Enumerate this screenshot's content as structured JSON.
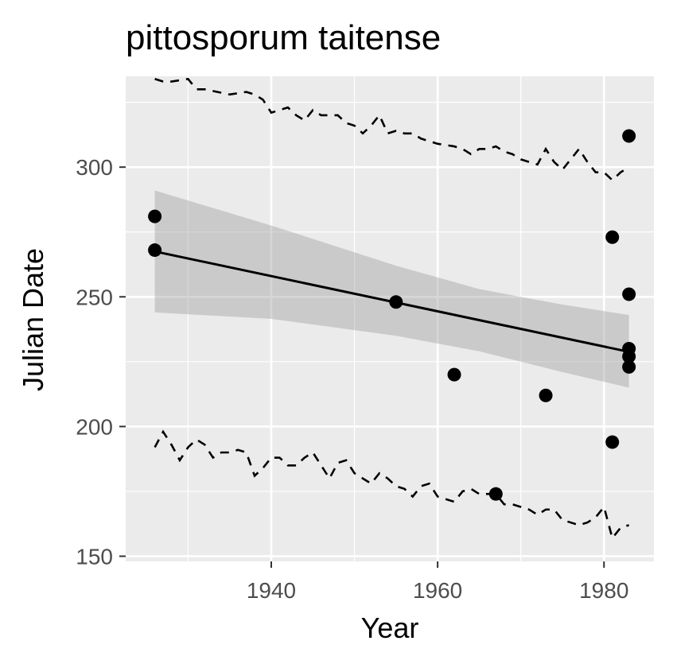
{
  "chart_data": {
    "type": "scatter",
    "title": "pittosporum taitense",
    "xlabel": "Year",
    "ylabel": "Julian Date",
    "xlim": [
      1922.5,
      1986
    ],
    "ylim": [
      148,
      335
    ],
    "x_ticks": [
      1940,
      1960,
      1980
    ],
    "x_tick_labels": [
      "1940",
      "1960",
      "1980"
    ],
    "x_minor_ticks": [
      1930,
      1950,
      1970
    ],
    "y_ticks": [
      150,
      200,
      250,
      300
    ],
    "y_tick_labels": [
      "150",
      "200",
      "250",
      "300"
    ],
    "y_minor_ticks": [
      175,
      225,
      275,
      325
    ],
    "grid": true,
    "background": "#ebebeb",
    "points": {
      "x": [
        1926,
        1926,
        1955,
        1962,
        1967,
        1973,
        1981,
        1981,
        1983,
        1983,
        1983,
        1983,
        1983
      ],
      "y": [
        281,
        268,
        248,
        220,
        174,
        212,
        273,
        194,
        312,
        251,
        230,
        227,
        223
      ]
    },
    "trend_line": {
      "x": [
        1926,
        1983
      ],
      "y": [
        267.5,
        228.8
      ]
    },
    "confidence_band": {
      "x": [
        1926,
        1940,
        1955,
        1965,
        1975,
        1983
      ],
      "upper": [
        291,
        277.5,
        262,
        253,
        247,
        243
      ],
      "lower": [
        244,
        241.5,
        235,
        229,
        221,
        215
      ]
    },
    "upper_dashed": {
      "x": [
        1926,
        1927,
        1928,
        1930,
        1931,
        1932,
        1935,
        1937,
        1938,
        1939,
        1940,
        1941,
        1942,
        1943,
        1944,
        1945,
        1946,
        1947,
        1948,
        1949,
        1950,
        1951,
        1952,
        1953,
        1954,
        1955,
        1956,
        1957,
        1958,
        1959,
        1960,
        1962,
        1963,
        1964,
        1965,
        1966,
        1967,
        1968,
        1969,
        1970,
        1971,
        1972,
        1973,
        1974,
        1975,
        1976,
        1977,
        1978,
        1979,
        1980,
        1981,
        1982,
        1983
      ],
      "y": [
        334,
        333,
        333,
        334,
        330,
        330,
        328,
        329,
        328,
        326,
        321,
        322,
        323,
        320,
        318,
        322,
        320,
        320,
        320,
        317,
        316,
        313,
        316,
        320,
        313,
        314,
        313,
        313,
        311,
        310,
        309,
        308,
        307,
        305,
        307,
        307,
        308,
        306,
        305,
        303,
        302,
        301,
        307,
        302,
        299,
        303,
        307,
        302,
        298,
        298,
        295,
        298,
        300
      ]
    },
    "lower_dashed": {
      "x": [
        1926,
        1927,
        1928,
        1929,
        1930,
        1931,
        1932,
        1933,
        1934,
        1935,
        1936,
        1937,
        1938,
        1939,
        1940,
        1941,
        1942,
        1943,
        1944,
        1945,
        1946,
        1947,
        1948,
        1949,
        1950,
        1951,
        1952,
        1953,
        1954,
        1955,
        1956,
        1957,
        1958,
        1959,
        1960,
        1961,
        1962,
        1963,
        1964,
        1965,
        1966,
        1967,
        1968,
        1969,
        1970,
        1971,
        1972,
        1973,
        1974,
        1975,
        1976,
        1977,
        1978,
        1979,
        1980,
        1981,
        1982,
        1983
      ],
      "y": [
        192,
        198,
        193,
        187,
        192,
        195,
        193,
        188,
        190,
        190,
        191,
        190,
        181,
        184,
        188,
        188,
        185,
        185,
        188,
        190,
        185,
        180,
        186,
        187,
        182,
        180,
        178,
        182,
        180,
        177,
        176,
        173,
        177,
        178,
        173,
        172,
        171,
        175,
        176,
        174,
        174,
        174,
        170,
        170,
        169,
        168,
        166,
        168,
        168,
        164,
        163,
        162,
        163,
        165,
        169,
        157,
        161,
        162
      ]
    }
  }
}
